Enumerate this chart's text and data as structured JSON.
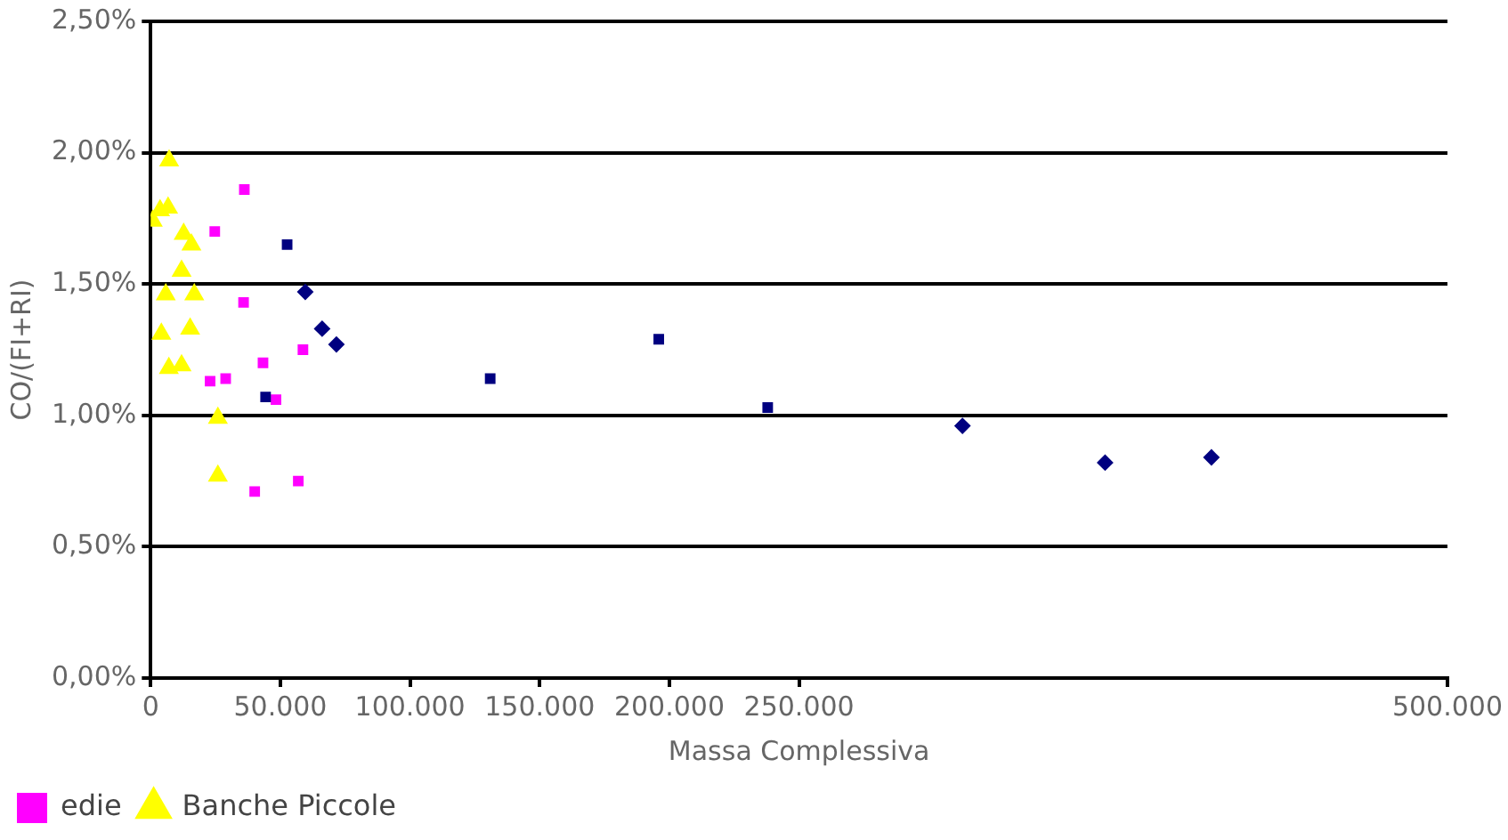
{
  "chart_data": {
    "type": "scatter",
    "xlabel": "Massa Complessiva",
    "ylabel": "CO/(FI+RI)",
    "xlim": [
      0,
      500000
    ],
    "xticks": [
      {
        "value": 0,
        "label": "0"
      },
      {
        "value": 50000,
        "label": "50.000"
      },
      {
        "value": 100000,
        "label": "100.000"
      },
      {
        "value": 150000,
        "label": "150.000"
      },
      {
        "value": 200000,
        "label": "200.000"
      },
      {
        "value": 250000,
        "label": "250.000"
      },
      {
        "value": 500000,
        "label": "500.000"
      }
    ],
    "ylim": [
      0,
      2.5
    ],
    "yticks": [
      {
        "value": 0,
        "label": "0,00%"
      },
      {
        "value": 0.5,
        "label": "0,50%"
      },
      {
        "value": 1,
        "label": "1,00%"
      },
      {
        "value": 1.5,
        "label": "1,50%"
      },
      {
        "value": 2,
        "label": "2,00%"
      },
      {
        "value": 2.5,
        "label": "2,50%"
      }
    ],
    "grid": "y",
    "legend": "bottom left",
    "series": [
      {
        "color": "#000080",
        "marker": "diamond",
        "x": [
          59600,
          66100,
          71600,
          313000,
          368000,
          409000
        ],
        "values": [
          1.47,
          1.33,
          1.27,
          0.96,
          0.82,
          0.84
        ]
      },
      {
        "color": "#000080",
        "marker": "square",
        "x": [
          52600,
          44300,
          130900,
          195900,
          237900
        ],
        "values": [
          1.65,
          1.07,
          1.14,
          1.29,
          1.03
        ]
      },
      {
        "name": "edie",
        "color": "#ff00ff",
        "marker": "square",
        "x": [
          36100,
          24700,
          35800,
          58700,
          43300,
          22900,
          28900,
          48300,
          40100,
          56900
        ],
        "values": [
          1.86,
          1.7,
          1.43,
          1.25,
          1.2,
          1.13,
          1.14,
          1.06,
          0.71,
          0.75
        ]
      },
      {
        "name": "Banche Piccole",
        "color": "#ffff00",
        "marker": "triangle",
        "x": [
          800,
          3600,
          6700,
          7100,
          12700,
          15700,
          11900,
          5800,
          16800,
          4100,
          15200,
          7000,
          11900,
          25900,
          25900
        ],
        "values": [
          1.74,
          1.78,
          1.79,
          1.97,
          1.69,
          1.65,
          1.55,
          1.46,
          1.46,
          1.31,
          1.33,
          1.18,
          1.19,
          0.99,
          0.77
        ]
      }
    ]
  }
}
